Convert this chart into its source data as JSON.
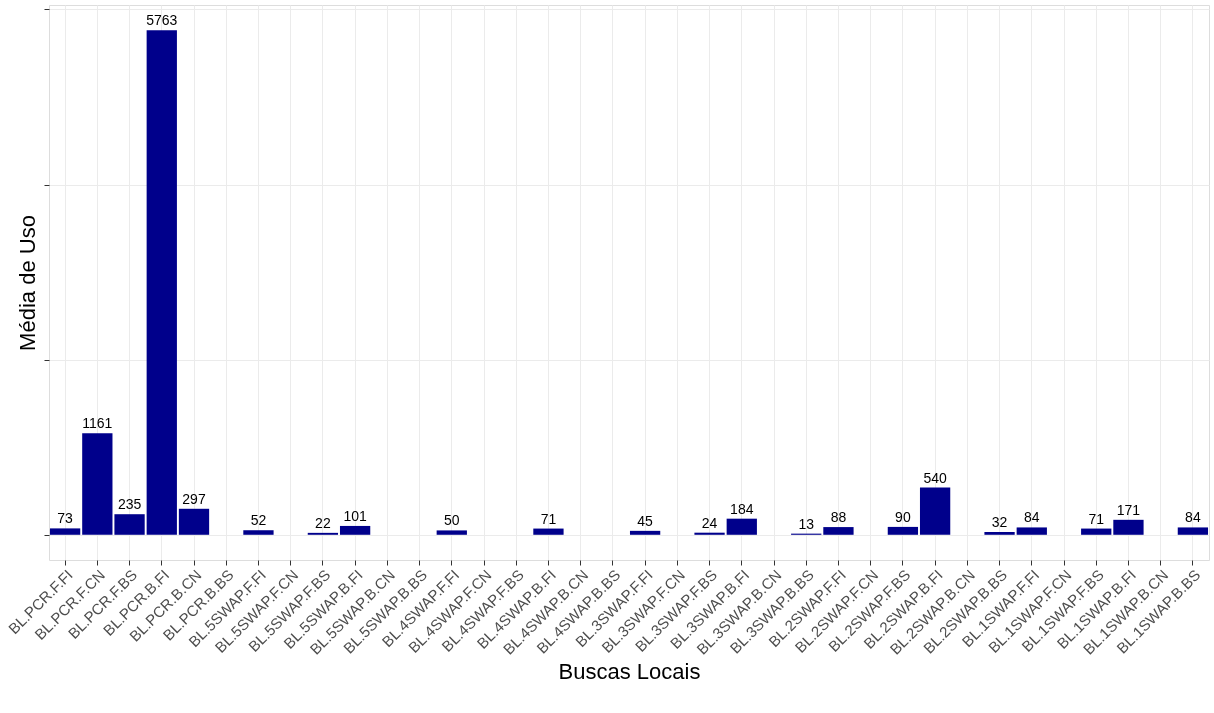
{
  "chart_data": {
    "type": "bar",
    "xlabel": "Buscas Locais",
    "ylabel": "Média de Uso",
    "categories": [
      "BL.PCR.F.FI",
      "BL.PCR.F.CN",
      "BL.PCR.F.BS",
      "BL.PCR.B.FI",
      "BL.PCR.B.CN",
      "BL.PCR.B.BS",
      "BL.5SWAP.F.FI",
      "BL.5SWAP.F.CN",
      "BL.5SWAP.F.BS",
      "BL.5SWAP.B.FI",
      "BL.5SWAP.B.CN",
      "BL.5SWAP.B.BS",
      "BL.4SWAP.F.FI",
      "BL.4SWAP.F.CN",
      "BL.4SWAP.F.BS",
      "BL.4SWAP.B.FI",
      "BL.4SWAP.B.CN",
      "BL.4SWAP.B.BS",
      "BL.3SWAP.F.FI",
      "BL.3SWAP.F.CN",
      "BL.3SWAP.F.BS",
      "BL.3SWAP.B.FI",
      "BL.3SWAP.B.CN",
      "BL.3SWAP.B.BS",
      "BL.2SWAP.F.FI",
      "BL.2SWAP.F.CN",
      "BL.2SWAP.F.BS",
      "BL.2SWAP.B.FI",
      "BL.2SWAP.B.CN",
      "BL.2SWAP.B.BS",
      "BL.1SWAP.F.FI",
      "BL.1SWAP.F.CN",
      "BL.1SWAP.F.BS",
      "BL.1SWAP.B.FI",
      "BL.1SWAP.B.CN",
      "BL.1SWAP.B.BS"
    ],
    "values": [
      73,
      1161,
      235,
      5763,
      297,
      null,
      52,
      null,
      22,
      101,
      null,
      null,
      50,
      null,
      null,
      71,
      null,
      null,
      45,
      null,
      24,
      184,
      null,
      13,
      88,
      null,
      90,
      540,
      null,
      32,
      84,
      null,
      71,
      171,
      null,
      84
    ],
    "color": "#00008b",
    "ylim": [
      -288,
      6051
    ],
    "yticks": [
      {
        "value": 0,
        "label": null
      },
      {
        "value": 2000,
        "label": null
      },
      {
        "value": 4000,
        "label": null
      },
      {
        "value": 6000,
        "label": null
      }
    ],
    "tick_labels": "x",
    "grid": true,
    "data_labels": true
  }
}
